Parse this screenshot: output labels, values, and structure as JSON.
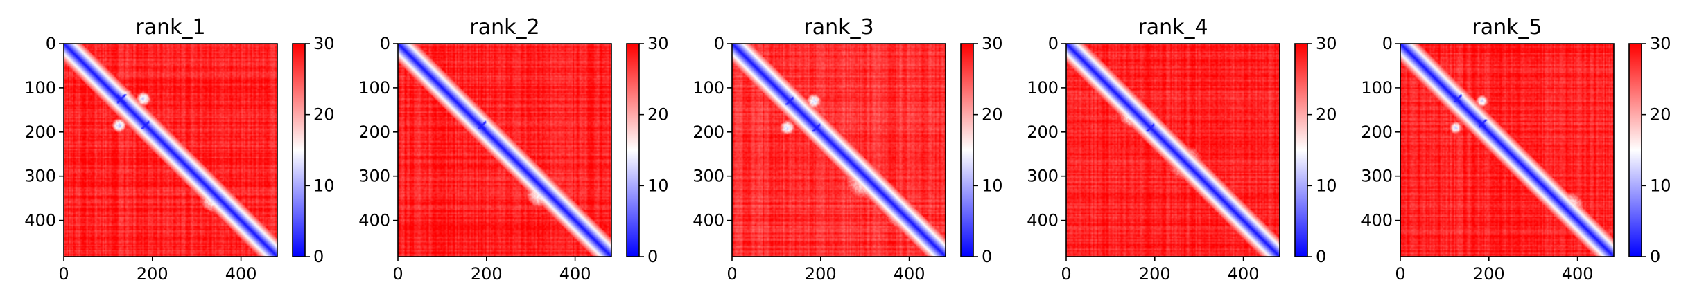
{
  "chart_data": [
    {
      "type": "heatmap",
      "title": "rank_1",
      "xlabel": "",
      "ylabel": "",
      "x_ticks": [
        0,
        200,
        400
      ],
      "y_ticks": [
        0,
        100,
        200,
        300,
        400
      ],
      "xlim": [
        0,
        482
      ],
      "ylim": [
        482,
        0
      ],
      "colorbar": {
        "range": [
          0,
          30
        ],
        "ticks": [
          0,
          10,
          20,
          30
        ],
        "colormap": "bwr"
      },
      "background_value": 28,
      "diagonal_value": 1,
      "features": [
        {
          "kind": "blob",
          "x": 130,
          "y": 125,
          "r": 28,
          "value": 10
        },
        {
          "kind": "blob",
          "x": 180,
          "y": 125,
          "r": 16,
          "value": 12
        },
        {
          "kind": "blob",
          "x": 125,
          "y": 185,
          "r": 16,
          "value": 12
        },
        {
          "kind": "blob",
          "x": 185,
          "y": 185,
          "r": 22,
          "value": 10
        },
        {
          "kind": "blob",
          "x": 340,
          "y": 350,
          "r": 32,
          "value": 14
        },
        {
          "kind": "blob",
          "x": 395,
          "y": 395,
          "r": 24,
          "value": 14
        },
        {
          "kind": "cross",
          "x": 130,
          "y": 125,
          "r": 14,
          "value": 2
        },
        {
          "kind": "cross",
          "x": 185,
          "y": 185,
          "r": 12,
          "value": 2
        }
      ]
    },
    {
      "type": "heatmap",
      "title": "rank_2",
      "xlabel": "",
      "ylabel": "",
      "x_ticks": [
        0,
        200,
        400
      ],
      "y_ticks": [
        0,
        100,
        200,
        300,
        400
      ],
      "xlim": [
        0,
        482
      ],
      "ylim": [
        482,
        0
      ],
      "colorbar": {
        "range": [
          0,
          30
        ],
        "ticks": [
          0,
          10,
          20,
          30
        ],
        "colormap": "bwr"
      },
      "background_value": 28,
      "diagonal_value": 1,
      "features": [
        {
          "kind": "blob",
          "x": 190,
          "y": 180,
          "r": 22,
          "value": 13
        },
        {
          "kind": "blob",
          "x": 320,
          "y": 340,
          "r": 30,
          "value": 15
        },
        {
          "kind": "blob",
          "x": 380,
          "y": 380,
          "r": 22,
          "value": 16
        },
        {
          "kind": "cross",
          "x": 190,
          "y": 185,
          "r": 12,
          "value": 2
        }
      ]
    },
    {
      "type": "heatmap",
      "title": "rank_3",
      "xlabel": "",
      "ylabel": "",
      "x_ticks": [
        0,
        200,
        400
      ],
      "y_ticks": [
        0,
        100,
        200,
        300,
        400
      ],
      "xlim": [
        0,
        482
      ],
      "ylim": [
        482,
        0
      ],
      "colorbar": {
        "range": [
          0,
          30
        ],
        "ticks": [
          0,
          10,
          20,
          30
        ],
        "colormap": "bwr"
      },
      "background_value": 27,
      "diagonal_value": 1,
      "features": [
        {
          "kind": "blob",
          "x": 130,
          "y": 125,
          "r": 26,
          "value": 11
        },
        {
          "kind": "blob",
          "x": 185,
          "y": 130,
          "r": 16,
          "value": 13
        },
        {
          "kind": "blob",
          "x": 125,
          "y": 190,
          "r": 16,
          "value": 13
        },
        {
          "kind": "blob",
          "x": 190,
          "y": 185,
          "r": 22,
          "value": 11
        },
        {
          "kind": "blob",
          "x": 300,
          "y": 310,
          "r": 40,
          "value": 17
        },
        {
          "kind": "blob",
          "x": 380,
          "y": 385,
          "r": 30,
          "value": 15
        },
        {
          "kind": "cross",
          "x": 130,
          "y": 130,
          "r": 12,
          "value": 2
        },
        {
          "kind": "cross",
          "x": 190,
          "y": 190,
          "r": 12,
          "value": 2
        }
      ]
    },
    {
      "type": "heatmap",
      "title": "rank_4",
      "xlabel": "",
      "ylabel": "",
      "x_ticks": [
        0,
        200,
        400
      ],
      "y_ticks": [
        0,
        100,
        200,
        300,
        400
      ],
      "xlim": [
        0,
        482
      ],
      "ylim": [
        482,
        0
      ],
      "colorbar": {
        "range": [
          0,
          30
        ],
        "ticks": [
          0,
          10,
          20,
          30
        ],
        "colormap": "bwr"
      },
      "background_value": 28,
      "diagonal_value": 1,
      "features": [
        {
          "kind": "blob",
          "x": 150,
          "y": 160,
          "r": 30,
          "value": 14
        },
        {
          "kind": "blob",
          "x": 190,
          "y": 190,
          "r": 20,
          "value": 12
        },
        {
          "kind": "blob",
          "x": 270,
          "y": 270,
          "r": 38,
          "value": 17
        },
        {
          "kind": "blob",
          "x": 340,
          "y": 340,
          "r": 30,
          "value": 15
        },
        {
          "kind": "cross",
          "x": 190,
          "y": 190,
          "r": 12,
          "value": 2
        }
      ]
    },
    {
      "type": "heatmap",
      "title": "rank_5",
      "xlabel": "",
      "ylabel": "",
      "x_ticks": [
        0,
        200,
        400
      ],
      "y_ticks": [
        0,
        100,
        200,
        300,
        400
      ],
      "xlim": [
        0,
        482
      ],
      "ylim": [
        482,
        0
      ],
      "colorbar": {
        "range": [
          0,
          30
        ],
        "ticks": [
          0,
          10,
          20,
          30
        ],
        "colormap": "bwr"
      },
      "background_value": 28,
      "diagonal_value": 1,
      "features": [
        {
          "kind": "blob",
          "x": 130,
          "y": 125,
          "r": 26,
          "value": 11
        },
        {
          "kind": "blob",
          "x": 185,
          "y": 130,
          "r": 14,
          "value": 13
        },
        {
          "kind": "blob",
          "x": 125,
          "y": 190,
          "r": 14,
          "value": 13
        },
        {
          "kind": "blob",
          "x": 185,
          "y": 180,
          "r": 20,
          "value": 11
        },
        {
          "kind": "blob",
          "x": 380,
          "y": 370,
          "r": 34,
          "value": 15
        },
        {
          "kind": "cross",
          "x": 130,
          "y": 125,
          "r": 12,
          "value": 2
        },
        {
          "kind": "cross",
          "x": 185,
          "y": 180,
          "r": 12,
          "value": 2
        }
      ]
    }
  ]
}
